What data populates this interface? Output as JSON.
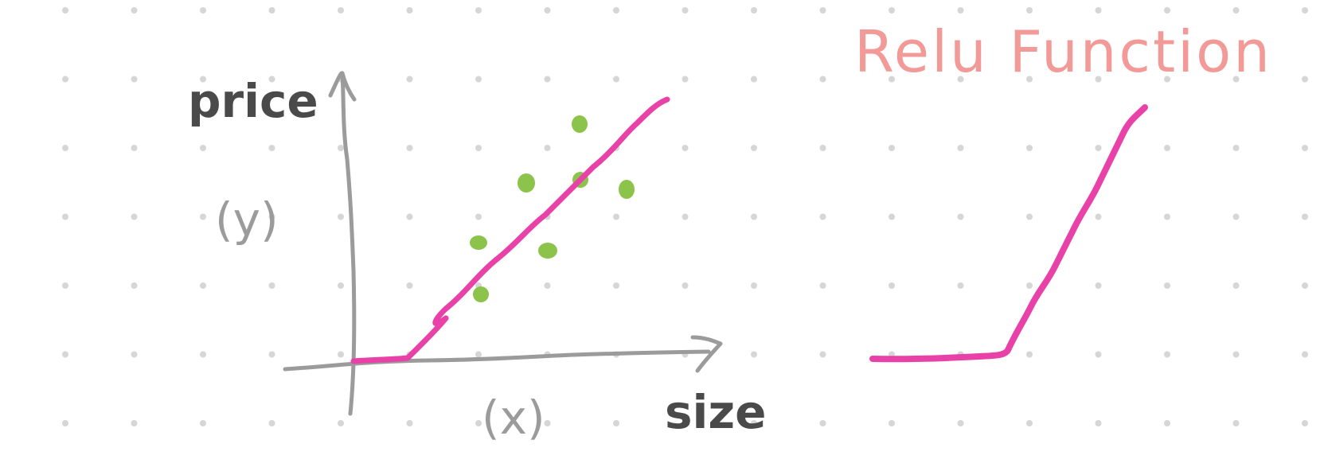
{
  "title": "Relu Function",
  "left_plot": {
    "y_axis_label": "price",
    "y_axis_var": "(y)",
    "x_axis_label": "size",
    "x_axis_var": "(x)"
  },
  "colors": {
    "background": "#ffffff",
    "grid_dot": "#d6d6d6",
    "axis": "#9b9b9b",
    "label_dark": "#4a4a4a",
    "label_grey": "#9b9b9b",
    "title": "#f29a98",
    "relu_curve": "#e842a8",
    "data_point": "#8cc34a"
  }
}
